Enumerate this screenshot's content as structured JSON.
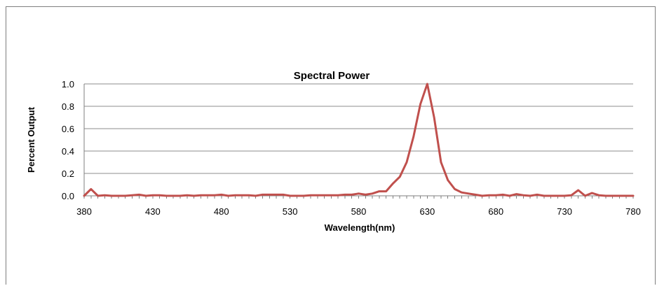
{
  "chart_data": {
    "type": "line",
    "title": "Spectral Power",
    "xlabel": "Wavelength(nm)",
    "ylabel": "Percent Output",
    "xlim": [
      380,
      780
    ],
    "ylim": [
      0,
      1.0
    ],
    "x_ticks": [
      "380",
      "430",
      "480",
      "530",
      "580",
      "630",
      "680",
      "730",
      "780"
    ],
    "y_ticks": [
      "0.0",
      "0.2",
      "0.4",
      "0.6",
      "0.8",
      "1.0"
    ],
    "grid": true,
    "legend": "none",
    "line_color": "#c0504d",
    "series": [
      {
        "x": [
          380,
          385,
          390,
          395,
          400,
          405,
          410,
          415,
          420,
          425,
          430,
          435,
          440,
          445,
          450,
          455,
          460,
          465,
          470,
          475,
          480,
          485,
          490,
          495,
          500,
          505,
          510,
          515,
          520,
          525,
          530,
          535,
          540,
          545,
          550,
          555,
          560,
          565,
          570,
          575,
          580,
          585,
          590,
          595,
          600,
          605,
          610,
          615,
          620,
          625,
          630,
          635,
          640,
          645,
          650,
          655,
          660,
          665,
          670,
          675,
          680,
          685,
          690,
          695,
          700,
          705,
          710,
          715,
          720,
          725,
          730,
          735,
          740,
          745,
          750,
          755,
          760,
          765,
          770,
          775,
          780
        ],
        "values": [
          0.0,
          0.06,
          0.0,
          0.005,
          0.0,
          0.0,
          0.0,
          0.005,
          0.01,
          0.0,
          0.005,
          0.005,
          0.0,
          0.0,
          0.0,
          0.005,
          0.0,
          0.005,
          0.005,
          0.005,
          0.01,
          0.0,
          0.005,
          0.005,
          0.005,
          0.0,
          0.01,
          0.01,
          0.01,
          0.01,
          0.0,
          0.0,
          0.0,
          0.005,
          0.005,
          0.005,
          0.005,
          0.005,
          0.01,
          0.01,
          0.02,
          0.01,
          0.02,
          0.04,
          0.04,
          0.11,
          0.17,
          0.3,
          0.53,
          0.82,
          1.0,
          0.7,
          0.3,
          0.14,
          0.06,
          0.03,
          0.02,
          0.01,
          0.0,
          0.005,
          0.005,
          0.01,
          0.0,
          0.015,
          0.005,
          0.0,
          0.01,
          0.0,
          0.0,
          0.0,
          0.0,
          0.005,
          0.05,
          0.0,
          0.025,
          0.005,
          0.0,
          0.0,
          0.0,
          0.0,
          0.0
        ]
      }
    ]
  }
}
